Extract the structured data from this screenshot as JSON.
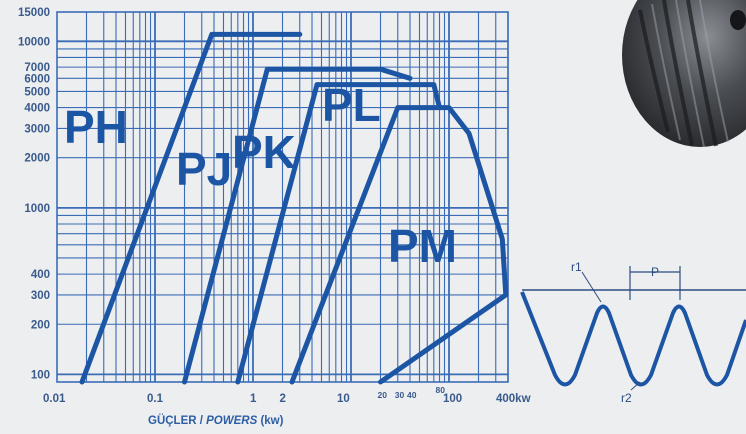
{
  "chart_data": {
    "type": "line",
    "title": "",
    "xlabel": "",
    "x_axis_title": {
      "prefix": "GÜÇLER / ",
      "emphasis": "POWERS",
      "suffix": " (kw)"
    },
    "ylabel": "",
    "x_scale": "log",
    "y_scale": "log",
    "xlim": [
      0.01,
      400
    ],
    "ylim": [
      90,
      15000
    ],
    "grid": true,
    "x_tick_labels": [
      {
        "v": 0.01,
        "label": "0.01"
      },
      {
        "v": 0.1,
        "label": "0.1"
      },
      {
        "v": 1,
        "label": "1"
      },
      {
        "v": 2,
        "label": "2"
      },
      {
        "v": 10,
        "label": "10"
      },
      {
        "v": 20,
        "label": "20"
      },
      {
        "v": 30,
        "label": "30"
      },
      {
        "v": 40,
        "label": "40"
      },
      {
        "v": 80,
        "label": "80"
      },
      {
        "v": 100,
        "label": "100"
      },
      {
        "v": 400,
        "label": "400kw"
      }
    ],
    "y_tick_labels": [
      {
        "v": 15000,
        "label": "15000"
      },
      {
        "v": 10000,
        "label": "10000"
      },
      {
        "v": 7000,
        "label": "7000"
      },
      {
        "v": 6000,
        "label": "6000"
      },
      {
        "v": 5000,
        "label": "5000"
      },
      {
        "v": 4000,
        "label": "4000"
      },
      {
        "v": 3000,
        "label": "3000"
      },
      {
        "v": 2000,
        "label": "2000"
      },
      {
        "v": 1000,
        "label": "1000"
      },
      {
        "v": 400,
        "label": "400"
      },
      {
        "v": 300,
        "label": "300"
      },
      {
        "v": 200,
        "label": "200"
      },
      {
        "v": 100,
        "label": "100"
      }
    ],
    "x_gridlines": [
      0.02,
      0.03,
      0.04,
      0.05,
      0.06,
      0.07,
      0.08,
      0.09,
      0.1,
      0.2,
      0.3,
      0.4,
      0.5,
      0.6,
      0.7,
      0.8,
      0.9,
      1,
      2,
      3,
      4,
      5,
      6,
      7,
      8,
      9,
      10,
      20,
      30,
      40,
      50,
      60,
      70,
      80,
      90,
      100,
      200,
      300,
      400
    ],
    "y_gridlines": [
      100,
      200,
      300,
      400,
      500,
      600,
      700,
      800,
      900,
      1000,
      2000,
      3000,
      4000,
      5000,
      6000,
      7000,
      8000,
      9000,
      10000,
      15000
    ],
    "regions": [
      {
        "label": "PH",
        "boundary": [
          [
            0.018,
            90
          ],
          [
            0.38,
            11000
          ],
          [
            3,
            11000
          ]
        ]
      },
      {
        "label": "PJ",
        "boundary": [
          [
            0.2,
            90
          ],
          [
            1.4,
            6800
          ],
          [
            20,
            6800
          ],
          [
            40,
            6000
          ]
        ]
      },
      {
        "label": "PK",
        "boundary": [
          [
            0.7,
            90
          ],
          [
            4.5,
            5500
          ],
          [
            70,
            5500
          ],
          [
            80,
            4000
          ]
        ]
      },
      {
        "label": "PL",
        "boundary": [
          [
            2.5,
            90
          ],
          [
            30,
            4000
          ],
          [
            100,
            4000
          ],
          [
            160,
            2800
          ],
          [
            350,
            650
          ],
          [
            380,
            300
          ],
          [
            20,
            90
          ]
        ]
      },
      {
        "label": "PM",
        "boundary": []
      }
    ]
  },
  "profile_diagram": {
    "labels": {
      "r1": "r1",
      "p": "P",
      "r2": "r2"
    }
  },
  "colors": {
    "line": "#1d55a5",
    "grid": "#3b6cb6",
    "tick_text": "#3a5a8c",
    "background": "#eceef0"
  }
}
